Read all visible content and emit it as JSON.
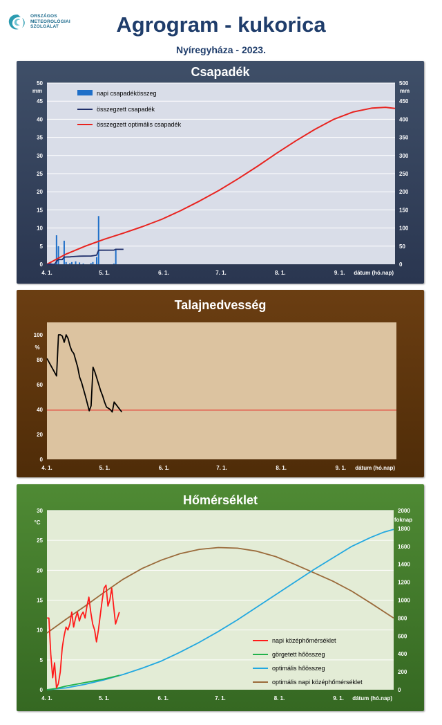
{
  "header": {
    "logo_lines": [
      "ORSZÁGOS",
      "METEOROLÓGIAI",
      "SZOLGÁLAT"
    ],
    "title": "Agrogram - kukorica",
    "subtitle": "Nyíregyháza - 2023."
  },
  "colors": {
    "logo": "#2a9bb0",
    "precip_bar": "#1f6fc8",
    "precip_cum": "#1f2f6b",
    "precip_opt": "#e8231f",
    "soil_line": "#000000",
    "soil_ref": "#e8231f",
    "temp_daily": "#ff1a1a",
    "temp_gdd": "#22b24c",
    "temp_opt_gdd": "#22a8e0",
    "temp_opt_daily": "#9a6a3a"
  },
  "chart_data": [
    {
      "id": "precip",
      "type": "bar",
      "title": "Csapadék",
      "xlabel": "dátum (hó.nap)",
      "x_ticks": [
        "4. 1.",
        "5. 1.",
        "6. 1.",
        "7. 1.",
        "8. 1.",
        "9. 1."
      ],
      "x_range_days": [
        0,
        182
      ],
      "y_left": {
        "unit": "mm",
        "range": [
          0,
          50
        ],
        "ticks": [
          0,
          5,
          10,
          15,
          20,
          25,
          30,
          35,
          40,
          45,
          50
        ]
      },
      "y_right": {
        "unit": "mm",
        "range": [
          0,
          500
        ],
        "ticks": [
          0,
          50,
          100,
          150,
          200,
          250,
          300,
          350,
          400,
          450,
          500
        ]
      },
      "grid": true,
      "legend_position": "top-left",
      "series": [
        {
          "name": "napi csapadékösszeg",
          "kind": "bar",
          "axis": "left",
          "points": [
            [
              2,
              0.3
            ],
            [
              5,
              8
            ],
            [
              6,
              5
            ],
            [
              9,
              6.5
            ],
            [
              10,
              0.6
            ],
            [
              12,
              0.3
            ],
            [
              13,
              0.6
            ],
            [
              15,
              0.8
            ],
            [
              17,
              0.5
            ],
            [
              19,
              0.2
            ],
            [
              23,
              0.3
            ],
            [
              24,
              0.6
            ],
            [
              26,
              2
            ],
            [
              27,
              13.3
            ],
            [
              35,
              0.2
            ],
            [
              36,
              4.3
            ]
          ]
        },
        {
          "name": "összegzett csapadék",
          "kind": "line",
          "axis": "right",
          "points": [
            [
              0,
              0
            ],
            [
              4,
              0
            ],
            [
              5,
              8
            ],
            [
              6,
              13
            ],
            [
              8,
              13
            ],
            [
              9,
              19.5
            ],
            [
              10,
              20.1
            ],
            [
              12,
              20.4
            ],
            [
              13,
              21
            ],
            [
              15,
              21.8
            ],
            [
              17,
              22.3
            ],
            [
              19,
              22.5
            ],
            [
              23,
              22.8
            ],
            [
              24,
              23.4
            ],
            [
              26,
              25.4
            ],
            [
              27,
              38.7
            ],
            [
              35,
              38.9
            ],
            [
              36,
              41.2
            ],
            [
              40,
              41.2
            ]
          ]
        },
        {
          "name": "összegzett optimális  csapadék",
          "kind": "line",
          "axis": "right",
          "points": [
            [
              0,
              0
            ],
            [
              10,
              28
            ],
            [
              20,
              50
            ],
            [
              30,
              69
            ],
            [
              40,
              86
            ],
            [
              50,
              104
            ],
            [
              60,
              124
            ],
            [
              70,
              148
            ],
            [
              80,
              175
            ],
            [
              90,
              204
            ],
            [
              100,
              236
            ],
            [
              110,
              270
            ],
            [
              120,
              306
            ],
            [
              130,
              340
            ],
            [
              140,
              372
            ],
            [
              150,
              400
            ],
            [
              160,
              420
            ],
            [
              170,
              431
            ],
            [
              177,
              433
            ],
            [
              182,
              430
            ]
          ]
        }
      ]
    },
    {
      "id": "soil",
      "type": "line",
      "title": "Talajnedvesség",
      "xlabel": "dátum (hó.nap)",
      "x_ticks": [
        "4. 1.",
        "5. 1.",
        "6. 1.",
        "7. 1.",
        "8. 1.",
        "9. 1."
      ],
      "x_range_days": [
        0,
        182
      ],
      "y_left": {
        "unit": "%",
        "range": [
          0,
          110
        ],
        "ticks": [
          0,
          20,
          40,
          60,
          80,
          100
        ]
      },
      "reference_line": 39.5,
      "series": [
        {
          "name": "",
          "kind": "line",
          "points": [
            [
              0,
              81
            ],
            [
              5,
              67
            ],
            [
              6,
              100
            ],
            [
              7,
              100
            ],
            [
              8,
              99
            ],
            [
              9,
              94
            ],
            [
              10,
              100
            ],
            [
              11,
              97
            ],
            [
              12,
              91
            ],
            [
              13,
              87
            ],
            [
              14,
              85
            ],
            [
              16,
              74
            ],
            [
              17,
              66
            ],
            [
              18,
              62
            ],
            [
              20,
              51
            ],
            [
              21,
              45
            ],
            [
              22,
              39
            ],
            [
              23,
              43
            ],
            [
              24,
              74
            ],
            [
              25,
              70
            ],
            [
              26,
              65
            ],
            [
              28,
              55
            ],
            [
              29,
              51
            ],
            [
              30,
              46
            ],
            [
              31,
              42
            ],
            [
              33,
              40
            ],
            [
              34,
              38
            ],
            [
              35,
              46
            ],
            [
              36,
              44
            ],
            [
              38,
              40
            ],
            [
              39,
              38
            ]
          ]
        }
      ]
    },
    {
      "id": "temp",
      "type": "line",
      "title": "Hőmérséklet",
      "xlabel": "dátum (hó.nap)",
      "x_ticks": [
        "4. 1.",
        "5. 1.",
        "6. 1.",
        "7. 1.",
        "8. 1.",
        "9. 1."
      ],
      "x_range_days": [
        0,
        182
      ],
      "y_left": {
        "unit": "°C",
        "range": [
          0,
          30
        ],
        "ticks": [
          0,
          5,
          10,
          15,
          20,
          25,
          30
        ]
      },
      "y_right": {
        "unit": "foknap",
        "range": [
          0,
          2000
        ],
        "ticks": [
          0,
          200,
          400,
          600,
          800,
          1000,
          1200,
          1400,
          1600,
          1800,
          2000
        ]
      },
      "grid": true,
      "legend_position": "bottom-right",
      "series": [
        {
          "name": "napi középhőmérséklet",
          "kind": "line",
          "axis": "left",
          "points": [
            [
              0,
              12
            ],
            [
              1,
              12
            ],
            [
              2,
              6
            ],
            [
              3,
              2
            ],
            [
              4,
              4.5
            ],
            [
              5,
              0.3
            ],
            [
              6,
              1
            ],
            [
              7,
              3
            ],
            [
              8,
              7
            ],
            [
              9,
              9
            ],
            [
              10,
              10.5
            ],
            [
              11,
              10
            ],
            [
              12,
              11
            ],
            [
              13,
              13
            ],
            [
              14,
              10.5
            ],
            [
              15,
              12
            ],
            [
              16,
              13
            ],
            [
              17,
              11.5
            ],
            [
              18,
              12.5
            ],
            [
              19,
              13
            ],
            [
              20,
              12
            ],
            [
              21,
              14
            ],
            [
              22,
              15.5
            ],
            [
              23,
              13
            ],
            [
              24,
              11
            ],
            [
              25,
              10
            ],
            [
              26,
              8
            ],
            [
              27,
              10
            ],
            [
              28,
              12.5
            ],
            [
              29,
              15
            ],
            [
              30,
              17
            ],
            [
              31,
              17.5
            ],
            [
              32,
              14
            ],
            [
              33,
              15
            ],
            [
              34,
              17
            ],
            [
              35,
              14
            ],
            [
              36,
              11
            ],
            [
              37,
              12
            ],
            [
              38,
              13
            ]
          ]
        },
        {
          "name": "görgetett hőösszeg",
          "kind": "line",
          "axis": "right",
          "points": [
            [
              0,
              0
            ],
            [
              5,
              15
            ],
            [
              10,
              40
            ],
            [
              15,
              60
            ],
            [
              20,
              80
            ],
            [
              25,
              100
            ],
            [
              30,
              120
            ],
            [
              35,
              145
            ],
            [
              38,
              160
            ]
          ]
        },
        {
          "name": "optimális hőösszeg",
          "kind": "line",
          "axis": "right",
          "points": [
            [
              0,
              0
            ],
            [
              10,
              20
            ],
            [
              20,
              60
            ],
            [
              30,
              110
            ],
            [
              40,
              170
            ],
            [
              50,
              240
            ],
            [
              60,
              320
            ],
            [
              70,
              420
            ],
            [
              80,
              530
            ],
            [
              90,
              650
            ],
            [
              100,
              780
            ],
            [
              110,
              920
            ],
            [
              120,
              1060
            ],
            [
              130,
              1200
            ],
            [
              140,
              1340
            ],
            [
              150,
              1470
            ],
            [
              160,
              1600
            ],
            [
              170,
              1700
            ],
            [
              177,
              1760
            ],
            [
              182,
              1790
            ]
          ]
        },
        {
          "name": "optimális napi középhőmérséklet",
          "kind": "line",
          "axis": "left",
          "points": [
            [
              0,
              9.5
            ],
            [
              10,
              11.8
            ],
            [
              20,
              14
            ],
            [
              30,
              16.3
            ],
            [
              40,
              18.5
            ],
            [
              50,
              20.3
            ],
            [
              60,
              21.7
            ],
            [
              70,
              22.8
            ],
            [
              80,
              23.5
            ],
            [
              90,
              23.8
            ],
            [
              100,
              23.7
            ],
            [
              110,
              23.2
            ],
            [
              120,
              22.3
            ],
            [
              130,
              21
            ],
            [
              140,
              19.6
            ],
            [
              150,
              18.2
            ],
            [
              160,
              16.5
            ],
            [
              170,
              14.5
            ],
            [
              182,
              12
            ]
          ]
        }
      ]
    }
  ]
}
